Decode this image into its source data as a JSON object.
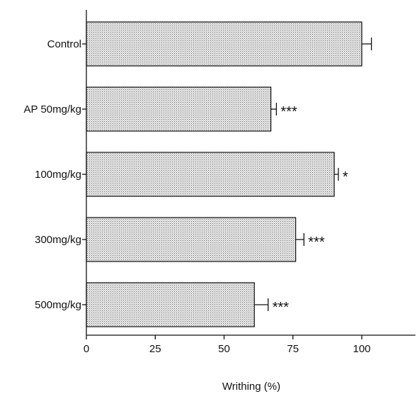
{
  "chart_data": {
    "type": "bar",
    "orientation": "horizontal",
    "title": "",
    "xlabel": "Writhing (%)",
    "ylabel": "",
    "categories": [
      "Control",
      "AP 50mg/kg",
      "100mg/kg",
      "300mg/kg",
      "500mg/kg"
    ],
    "values": [
      100,
      67,
      90,
      76,
      61
    ],
    "errors": [
      3.5,
      2,
      1.5,
      3,
      5
    ],
    "significance": [
      "",
      "***",
      "*",
      "***",
      "***"
    ],
    "xlim": [
      0,
      120
    ],
    "xticks": [
      "0",
      "25",
      "50",
      "75",
      "100"
    ],
    "bar_fill": "stippled light gray",
    "grid": false,
    "legend": "none"
  }
}
